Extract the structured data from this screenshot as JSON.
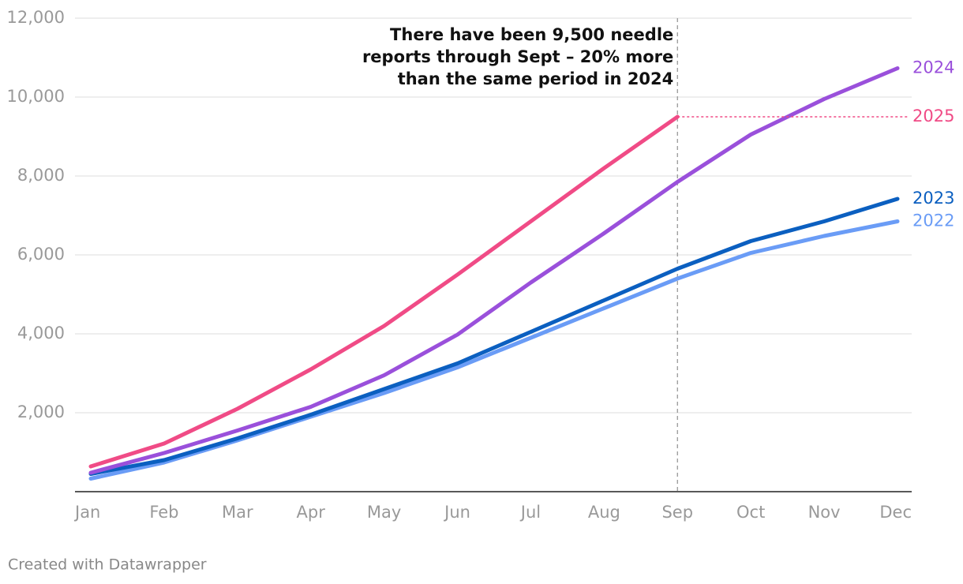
{
  "chart_data": {
    "type": "line",
    "categories": [
      "Jan",
      "Feb",
      "Mar",
      "Apr",
      "May",
      "Jun",
      "Jul",
      "Aug",
      "Sep",
      "Oct",
      "Nov",
      "Dec"
    ],
    "series": [
      {
        "name": "2022",
        "color": "#6a9cf6",
        "values": [
          330,
          740,
          1300,
          1900,
          2500,
          3150,
          3900,
          4650,
          5400,
          6050,
          6480,
          6850
        ]
      },
      {
        "name": "2023",
        "color": "#0b5fc0",
        "values": [
          450,
          800,
          1350,
          1950,
          2600,
          3250,
          4050,
          4850,
          5650,
          6350,
          6850,
          7420
        ]
      },
      {
        "name": "2024",
        "color": "#9a50db",
        "values": [
          480,
          980,
          1550,
          2150,
          2950,
          3980,
          5300,
          6550,
          7850,
          9050,
          9950,
          10730
        ]
      },
      {
        "name": "2025",
        "color": "#f04b86",
        "values": [
          640,
          1220,
          2100,
          3100,
          4200,
          5500,
          6850,
          8200,
          9500,
          null,
          null,
          null
        ]
      }
    ],
    "ylim": [
      0,
      12000
    ],
    "yticks": [
      {
        "value": 2000,
        "label": "2,000"
      },
      {
        "value": 4000,
        "label": "4,000"
      },
      {
        "value": 6000,
        "label": "6,000"
      },
      {
        "value": 8000,
        "label": "8,000"
      },
      {
        "value": 10000,
        "label": "10,000"
      },
      {
        "value": 12000,
        "label": "12,000"
      }
    ],
    "grid": true,
    "annotation": [
      "There have been 9,500 needle",
      "reports through Sept – 20% more",
      "than the same period in 2024"
    ],
    "credit": "Created with Datawrapper"
  }
}
